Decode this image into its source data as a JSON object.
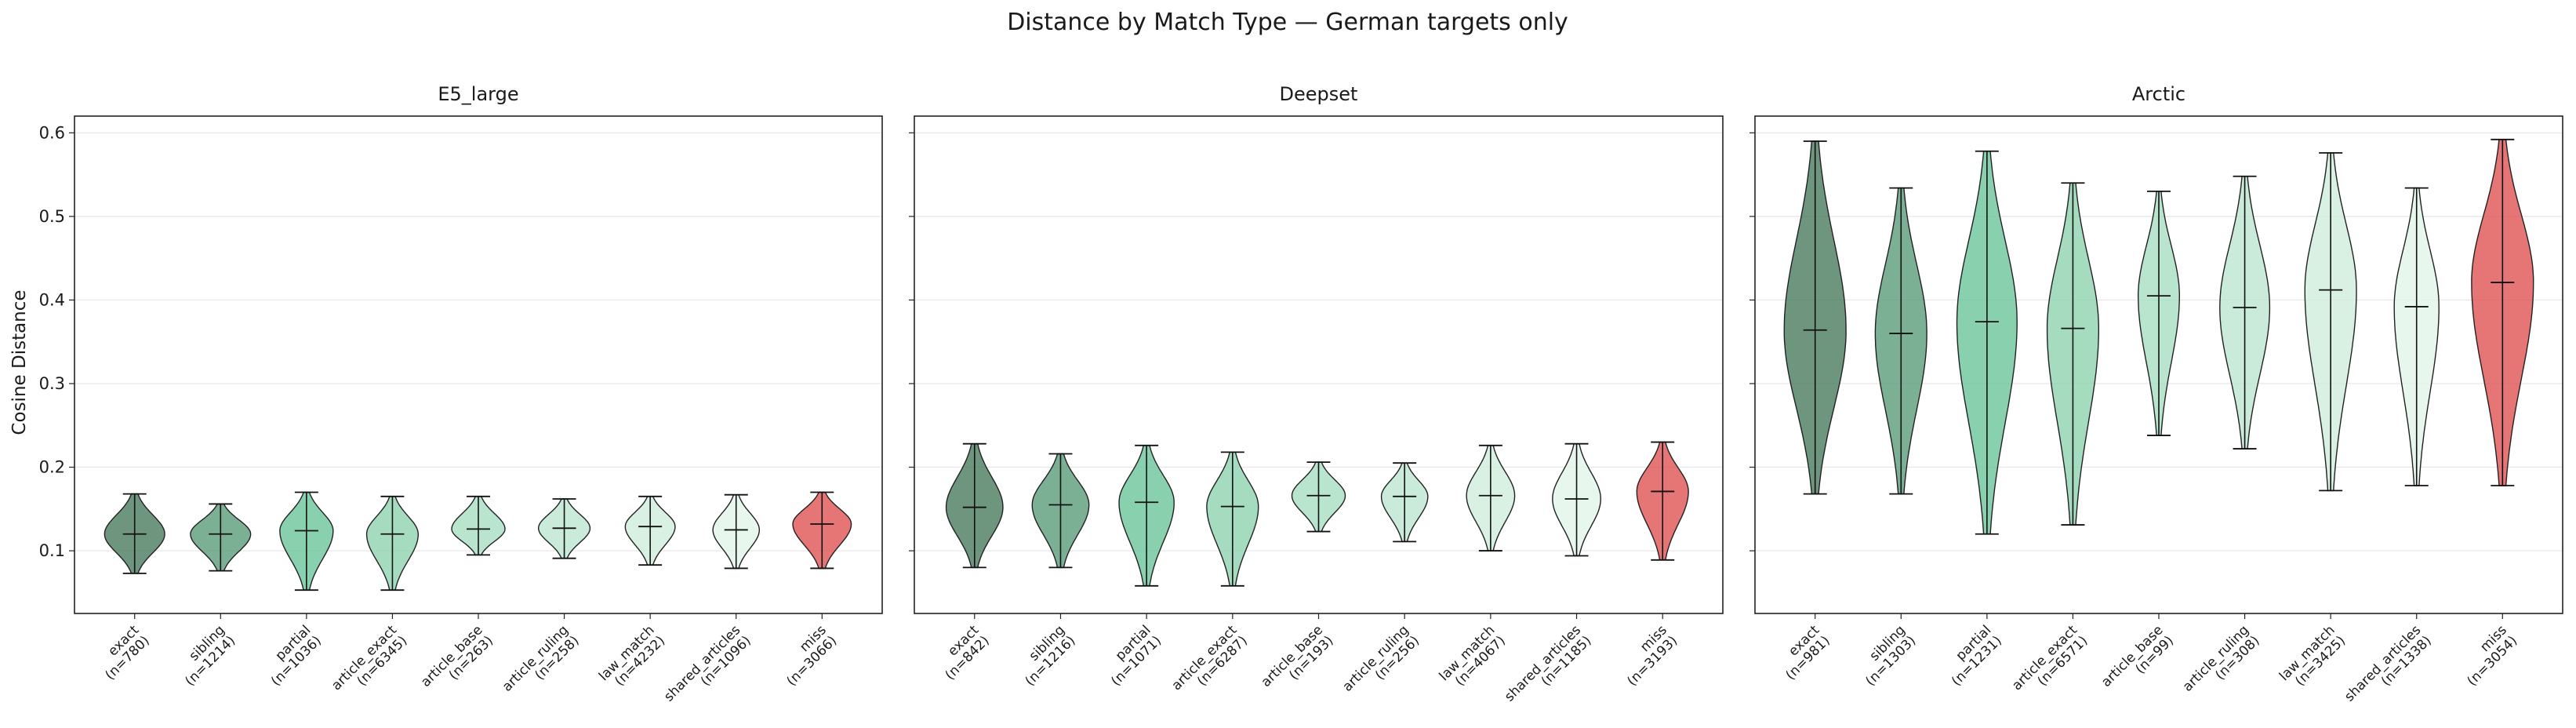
{
  "figure": {
    "title": "Distance by Match Type — German targets only",
    "ylabel": "Cosine Distance"
  },
  "colors": {
    "exact": "#4a7a5e",
    "sibling": "#5b9c7a",
    "partial": "#6cc49a",
    "article_exact": "#8ed3b0",
    "article_base": "#a8ddc0",
    "article_ruling": "#bde6cf",
    "law_match": "#d0eddc",
    "shared_articles": "#e2f5e8",
    "miss": "#e05252",
    "edge": "#222222"
  },
  "chart_data": [
    {
      "type": "violin",
      "title": "E5_large",
      "ylim": [
        0.025,
        0.62
      ],
      "yticks": [
        "0.1",
        "0.2",
        "0.3",
        "0.4",
        "0.5",
        "0.6"
      ],
      "grid": true,
      "categories": [
        "exact",
        "sibling",
        "partial",
        "article_exact",
        "article_base",
        "article_ruling",
        "law_match",
        "shared_articles",
        "miss"
      ],
      "counts": [
        "(n=780)",
        "(n=1214)",
        "(n=1036)",
        "(n=6345)",
        "(n=263)",
        "(n=258)",
        "(n=4232)",
        "(n=1096)",
        "(n=3066)"
      ],
      "min": [
        0.073,
        0.076,
        0.053,
        0.053,
        0.095,
        0.091,
        0.083,
        0.079,
        0.079
      ],
      "max": [
        0.168,
        0.156,
        0.17,
        0.165,
        0.165,
        0.162,
        0.165,
        0.167,
        0.17
      ],
      "mean": [
        0.12,
        0.12,
        0.124,
        0.12,
        0.126,
        0.127,
        0.129,
        0.125,
        0.132
      ],
      "max_half_width": [
        0.35,
        0.35,
        0.31,
        0.3,
        0.31,
        0.3,
        0.29,
        0.27,
        0.34
      ]
    },
    {
      "type": "violin",
      "title": "Deepset",
      "ylim": [
        0.025,
        0.62
      ],
      "yticks": [
        "0.1",
        "0.2",
        "0.3",
        "0.4",
        "0.5",
        "0.6"
      ],
      "grid": true,
      "categories": [
        "exact",
        "sibling",
        "partial",
        "article_exact",
        "article_base",
        "article_ruling",
        "law_match",
        "shared_articles",
        "miss"
      ],
      "counts": [
        "(n=842)",
        "(n=1216)",
        "(n=1071)",
        "(n=6287)",
        "(n=193)",
        "(n=256)",
        "(n=4067)",
        "(n=1185)",
        "(n=3193)"
      ],
      "min": [
        0.08,
        0.08,
        0.058,
        0.058,
        0.123,
        0.111,
        0.1,
        0.094,
        0.089
      ],
      "max": [
        0.228,
        0.216,
        0.226,
        0.218,
        0.206,
        0.205,
        0.226,
        0.228,
        0.23
      ],
      "mean": [
        0.152,
        0.155,
        0.158,
        0.153,
        0.166,
        0.165,
        0.166,
        0.162,
        0.171
      ],
      "max_half_width": [
        0.33,
        0.33,
        0.32,
        0.3,
        0.31,
        0.27,
        0.28,
        0.28,
        0.3
      ]
    },
    {
      "type": "violin",
      "title": "Arctic",
      "ylim": [
        0.025,
        0.62
      ],
      "yticks": [
        "0.1",
        "0.2",
        "0.3",
        "0.4",
        "0.5",
        "0.6"
      ],
      "grid": true,
      "categories": [
        "exact",
        "sibling",
        "partial",
        "article_exact",
        "article_base",
        "article_ruling",
        "law_match",
        "shared_articles",
        "miss"
      ],
      "counts": [
        "(n=981)",
        "(n=1303)",
        "(n=1231)",
        "(n=6571)",
        "(n=99)",
        "(n=308)",
        "(n=3425)",
        "(n=1338)",
        "(n=3054)"
      ],
      "min": [
        0.168,
        0.168,
        0.12,
        0.131,
        0.238,
        0.222,
        0.172,
        0.178,
        0.178
      ],
      "max": [
        0.59,
        0.534,
        0.578,
        0.54,
        0.53,
        0.548,
        0.576,
        0.534,
        0.592
      ],
      "mean": [
        0.364,
        0.36,
        0.374,
        0.366,
        0.405,
        0.391,
        0.412,
        0.392,
        0.421
      ],
      "max_half_width": [
        0.36,
        0.3,
        0.35,
        0.3,
        0.24,
        0.29,
        0.3,
        0.26,
        0.36
      ]
    }
  ]
}
